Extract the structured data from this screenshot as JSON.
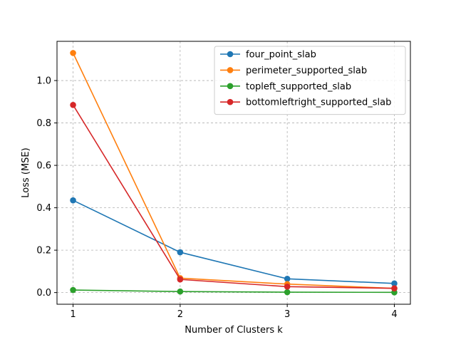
{
  "chart_data": {
    "type": "line",
    "title": "",
    "xlabel": "Number of Clusters k",
    "ylabel": "Loss (MSE)",
    "x": [
      1,
      2,
      3,
      4
    ],
    "x_ticks": [
      "1",
      "2",
      "3",
      "4"
    ],
    "y_ticks": [
      "0.0",
      "0.2",
      "0.4",
      "0.6",
      "0.8",
      "1.0"
    ],
    "y_tick_values": [
      0.0,
      0.2,
      0.4,
      0.6,
      0.8,
      1.0
    ],
    "xlim": [
      0.85,
      4.15
    ],
    "ylim": [
      -0.055,
      1.185
    ],
    "grid": true,
    "legend_position": "top-right",
    "series": [
      {
        "name": "four_point_slab",
        "color": "#1f77b4",
        "values": [
          0.435,
          0.19,
          0.065,
          0.043
        ]
      },
      {
        "name": "perimeter_supported_slab",
        "color": "#ff7f0e",
        "values": [
          1.13,
          0.068,
          0.04,
          0.02
        ]
      },
      {
        "name": "topleft_supported_slab",
        "color": "#2ca02c",
        "values": [
          0.012,
          0.005,
          0.002,
          0.001
        ]
      },
      {
        "name": "bottomleftright_supported_slab",
        "color": "#d62728",
        "values": [
          0.885,
          0.062,
          0.028,
          0.02
        ]
      }
    ]
  }
}
